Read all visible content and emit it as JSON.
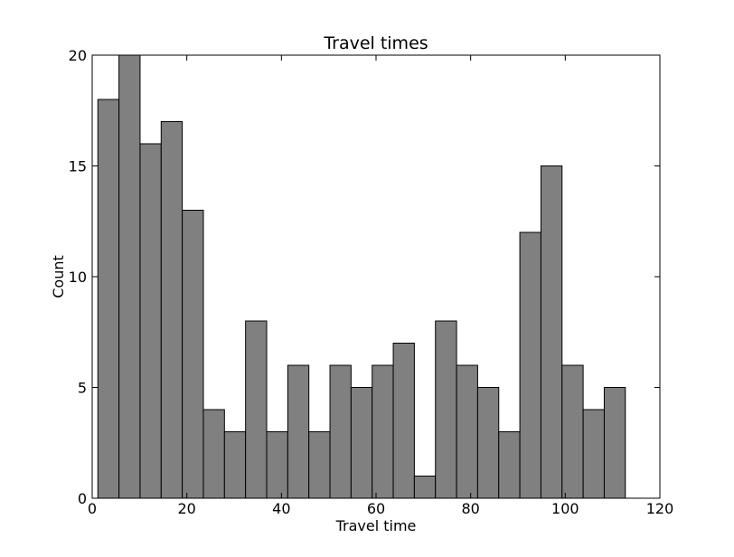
{
  "chart_data": {
    "type": "bar",
    "title": "Travel times",
    "xlabel": "Travel time",
    "ylabel": "Count",
    "xlim": [
      0,
      120
    ],
    "ylim": [
      0,
      20
    ],
    "xticks": [
      0,
      20,
      40,
      60,
      80,
      100,
      120
    ],
    "yticks": [
      0,
      5,
      10,
      15,
      20
    ],
    "bin_edges": [
      1.2,
      5.66,
      10.12,
      14.58,
      19.04,
      23.5,
      27.96,
      32.42,
      36.88,
      41.34,
      45.8,
      50.26,
      54.72,
      59.18,
      63.64,
      68.1,
      72.56,
      77.02,
      81.48,
      85.94,
      90.4,
      94.86,
      99.32,
      103.78,
      108.24,
      112.7
    ],
    "values": [
      18,
      20,
      16,
      17,
      13,
      4,
      3,
      8,
      3,
      6,
      3,
      6,
      5,
      6,
      7,
      1,
      8,
      6,
      5,
      3,
      12,
      15,
      6,
      4,
      5
    ],
    "bar_color": "#808080",
    "edge_color": "#000000",
    "grid": false
  }
}
